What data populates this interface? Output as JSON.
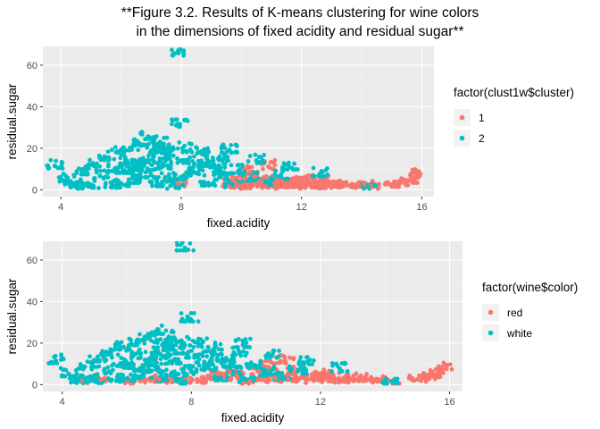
{
  "figure_title_line1": "**Figure 3.2. Results of K-means clustering for wine colors",
  "figure_title_line2": "in the dimensions of fixed acidity and residual sugar**",
  "chart_data": [
    {
      "type": "scatter",
      "xlabel": "fixed.acidity",
      "ylabel": "residual.sugar",
      "xlim": [
        3.4,
        16.4
      ],
      "ylim": [
        -3.3,
        69
      ],
      "x_ticks": [
        4,
        8,
        12,
        16
      ],
      "x_tick_labels": [
        "4",
        "8",
        "12",
        "16"
      ],
      "y_ticks": [
        0,
        20,
        40,
        60
      ],
      "y_tick_labels": [
        "0",
        "20",
        "40",
        "60"
      ],
      "grid": true,
      "legend_position": "right",
      "legend_title": "factor(clust1w$cluster)",
      "series": [
        {
          "name": "1",
          "color": "#F8766D",
          "points": [
            [
              9.6,
              1.8
            ],
            [
              9.9,
              2.2
            ],
            [
              10.2,
              1.9
            ],
            [
              10.5,
              2.6
            ],
            [
              10.8,
              2.1
            ],
            [
              11.1,
              3.0
            ],
            [
              11.4,
              2.4
            ],
            [
              11.7,
              1.7
            ],
            [
              12.0,
              2.8
            ],
            [
              12.3,
              2.2
            ],
            [
              12.6,
              3.4
            ],
            [
              12.9,
              2.0
            ],
            [
              13.2,
              2.6
            ],
            [
              13.5,
              2.3
            ],
            [
              10.1,
              5.4
            ],
            [
              10.6,
              4.1
            ],
            [
              11.2,
              4.6
            ],
            [
              12.2,
              5.1
            ],
            [
              10.3,
              8.6
            ],
            [
              10.9,
              11.2
            ],
            [
              13.9,
              2.1
            ],
            [
              14.3,
              1.6
            ],
            [
              15.0,
              2.6
            ],
            [
              15.3,
              3.4
            ],
            [
              15.6,
              4.6
            ],
            [
              15.9,
              7.8
            ],
            [
              9.8,
              3.4
            ],
            [
              10.4,
              6.3
            ],
            [
              11.9,
              3.9
            ],
            [
              12.8,
              4.5
            ],
            [
              10.7,
              3.3
            ],
            [
              11.5,
              2.9
            ],
            [
              12.5,
              1.9
            ],
            [
              13.0,
              3.1
            ],
            [
              9.7,
              4.8
            ],
            [
              10.0,
              1.6
            ],
            [
              11.3,
              1.5
            ],
            [
              12.1,
              4.0
            ],
            [
              14.1,
              2.6
            ],
            [
              7.9,
              2.9
            ]
          ]
        },
        {
          "name": "2",
          "color": "#00BFC4",
          "points": [
            [
              3.8,
              11.5
            ],
            [
              4.2,
              5.2
            ],
            [
              4.5,
              1.8
            ],
            [
              4.7,
              8.6
            ],
            [
              4.9,
              3.1
            ],
            [
              5.1,
              12.4
            ],
            [
              5.3,
              6.7
            ],
            [
              5.5,
              15.6
            ],
            [
              5.7,
              2.2
            ],
            [
              5.9,
              18.1
            ],
            [
              6.1,
              9.3
            ],
            [
              6.3,
              20.2
            ],
            [
              6.5,
              4.5
            ],
            [
              6.6,
              22.4
            ],
            [
              6.8,
              13.1
            ],
            [
              6.9,
              25.6
            ],
            [
              7.0,
              7.2
            ],
            [
              7.1,
              19.1
            ],
            [
              7.2,
              2.9
            ],
            [
              7.3,
              23.0
            ],
            [
              7.4,
              11.4
            ],
            [
              7.5,
              16.2
            ],
            [
              7.6,
              5.1
            ],
            [
              7.7,
              20.1
            ],
            [
              7.8,
              1.5
            ],
            [
              7.9,
              65.8
            ],
            [
              7.95,
              31.6
            ],
            [
              8.1,
              14.2
            ],
            [
              8.3,
              19.3
            ],
            [
              8.5,
              8.1
            ],
            [
              8.7,
              17.2
            ],
            [
              8.9,
              3.3
            ],
            [
              9.1,
              12.0
            ],
            [
              9.3,
              6.1
            ],
            [
              9.5,
              15.2
            ],
            [
              9.7,
              2.4
            ],
            [
              9.9,
              9.1
            ],
            [
              10.3,
              5.6
            ],
            [
              10.8,
              3.6
            ],
            [
              11.3,
              6.4
            ],
            [
              11.6,
              11.0
            ],
            [
              12.6,
              7.6
            ],
            [
              14.2,
              1.6
            ],
            [
              6.0,
              3.0
            ],
            [
              6.4,
              7.8
            ],
            [
              6.7,
              10.5
            ],
            [
              7.05,
              14.5
            ],
            [
              7.35,
              17.8
            ],
            [
              6.2,
              13.9
            ],
            [
              5.8,
              10.2
            ],
            [
              8.0,
              6.2
            ],
            [
              8.4,
              10.9
            ],
            [
              8.8,
              12.6
            ],
            [
              9.2,
              9.8
            ],
            [
              4.4,
              2.6
            ],
            [
              5.0,
              2.0
            ],
            [
              9.6,
              19.2
            ],
            [
              10.5,
              14.1
            ]
          ]
        }
      ]
    },
    {
      "type": "scatter",
      "xlabel": "fixed.acidity",
      "ylabel": "residual.sugar",
      "xlim": [
        3.4,
        16.4
      ],
      "ylim": [
        -3.3,
        69
      ],
      "x_ticks": [
        4,
        8,
        12,
        16
      ],
      "x_tick_labels": [
        "4",
        "8",
        "12",
        "16"
      ],
      "y_ticks": [
        0,
        20,
        40,
        60
      ],
      "y_tick_labels": [
        "0",
        "20",
        "40",
        "60"
      ],
      "grid": true,
      "legend_position": "right",
      "legend_title": "factor(wine$color)",
      "series": [
        {
          "name": "red",
          "color": "#F8766D",
          "points": [
            [
              4.6,
              1.9
            ],
            [
              5.2,
              2.4
            ],
            [
              6.0,
              1.8
            ],
            [
              6.6,
              2.2
            ],
            [
              7.0,
              2.6
            ],
            [
              7.4,
              1.9
            ],
            [
              7.8,
              2.4
            ],
            [
              8.2,
              2.1
            ],
            [
              8.6,
              2.7
            ],
            [
              9.0,
              3.4
            ],
            [
              9.4,
              4.1
            ],
            [
              9.8,
              1.7
            ],
            [
              10.2,
              2.4
            ],
            [
              10.6,
              3.0
            ],
            [
              11.0,
              2.6
            ],
            [
              11.4,
              3.4
            ],
            [
              11.8,
              2.0
            ],
            [
              12.2,
              2.8
            ],
            [
              12.6,
              2.2
            ],
            [
              13.0,
              2.9
            ],
            [
              13.4,
              2.0
            ],
            [
              13.8,
              2.4
            ],
            [
              14.2,
              1.6
            ],
            [
              15.0,
              2.6
            ],
            [
              15.4,
              3.9
            ],
            [
              15.6,
              5.0
            ],
            [
              15.9,
              7.6
            ],
            [
              10.1,
              6.2
            ],
            [
              10.4,
              8.4
            ],
            [
              10.9,
              11.6
            ],
            [
              11.2,
              5.6
            ],
            [
              12.0,
              4.6
            ],
            [
              9.2,
              6.0
            ],
            [
              8.8,
              5.1
            ],
            [
              12.4,
              3.6
            ],
            [
              13.2,
              3.3
            ]
          ]
        },
        {
          "name": "white",
          "color": "#00BFC4",
          "points": [
            [
              3.8,
              11.5
            ],
            [
              4.2,
              5.2
            ],
            [
              4.5,
              1.8
            ],
            [
              4.7,
              8.6
            ],
            [
              4.9,
              3.1
            ],
            [
              5.1,
              12.4
            ],
            [
              5.3,
              6.7
            ],
            [
              5.5,
              15.6
            ],
            [
              5.7,
              2.2
            ],
            [
              5.9,
              18.1
            ],
            [
              6.1,
              9.3
            ],
            [
              6.3,
              20.2
            ],
            [
              6.5,
              4.5
            ],
            [
              6.6,
              22.4
            ],
            [
              6.8,
              13.1
            ],
            [
              6.9,
              25.6
            ],
            [
              7.0,
              7.2
            ],
            [
              7.1,
              19.1
            ],
            [
              7.2,
              2.9
            ],
            [
              7.3,
              23.0
            ],
            [
              7.4,
              11.4
            ],
            [
              7.5,
              16.2
            ],
            [
              7.6,
              5.1
            ],
            [
              7.7,
              20.1
            ],
            [
              7.8,
              1.5
            ],
            [
              7.8,
              65.8
            ],
            [
              7.95,
              31.6
            ],
            [
              8.1,
              14.2
            ],
            [
              8.3,
              19.3
            ],
            [
              8.5,
              8.1
            ],
            [
              8.7,
              17.2
            ],
            [
              8.9,
              3.3
            ],
            [
              9.1,
              12.0
            ],
            [
              9.3,
              6.1
            ],
            [
              9.5,
              15.2
            ],
            [
              9.7,
              2.4
            ],
            [
              9.9,
              9.1
            ],
            [
              10.3,
              5.6
            ],
            [
              10.8,
              3.6
            ],
            [
              11.3,
              6.4
            ],
            [
              11.6,
              11.0
            ],
            [
              12.6,
              7.6
            ],
            [
              14.2,
              1.6
            ],
            [
              6.0,
              3.0
            ],
            [
              6.4,
              7.8
            ],
            [
              6.7,
              10.5
            ],
            [
              7.05,
              14.5
            ],
            [
              7.35,
              17.8
            ],
            [
              6.2,
              13.9
            ],
            [
              5.8,
              10.2
            ],
            [
              8.0,
              6.2
            ],
            [
              8.4,
              10.9
            ],
            [
              8.8,
              12.6
            ],
            [
              9.2,
              9.8
            ],
            [
              4.4,
              2.6
            ],
            [
              5.0,
              2.0
            ],
            [
              9.6,
              19.2
            ],
            [
              10.5,
              14.1
            ]
          ]
        }
      ]
    }
  ]
}
